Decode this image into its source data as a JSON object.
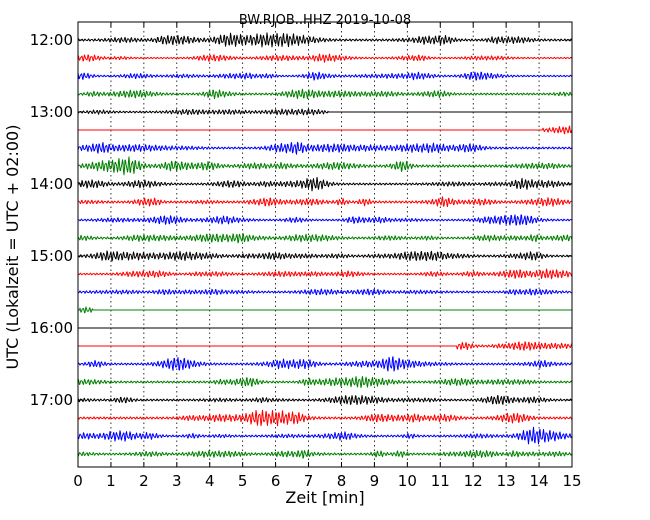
{
  "chart_data": {
    "type": "line",
    "title": "BW.RJOB..HHZ 2019-10-08",
    "xlabel": "Zeit  [min]",
    "ylabel": "UTC (Lokalzeit = UTC + 02:00)",
    "xlim": [
      0,
      15
    ],
    "x_ticks": [
      "0",
      "1",
      "2",
      "3",
      "4",
      "5",
      "6",
      "7",
      "8",
      "9",
      "10",
      "11",
      "12",
      "13",
      "14",
      "15"
    ],
    "y_ticks": [
      "12:00",
      "13:00",
      "14:00",
      "15:00",
      "16:00",
      "17:00"
    ],
    "grid": "vertical dotted",
    "color_cycle": [
      "#000000",
      "#ff0000",
      "#0000ff",
      "#008000"
    ],
    "traces": [
      {
        "start": "12:00",
        "amp": 0.5,
        "active_from": 0,
        "active_to": 15
      },
      {
        "start": "12:15",
        "amp": 0.3,
        "active_from": 0,
        "active_to": 15
      },
      {
        "start": "12:30",
        "amp": 0.35,
        "active_from": 0,
        "active_to": 15
      },
      {
        "start": "12:45",
        "amp": 0.45,
        "active_from": 0,
        "active_to": 15
      },
      {
        "start": "13:00",
        "amp": 0.4,
        "active_from": 0,
        "active_to": 7.6
      },
      {
        "start": "13:15",
        "amp": 0.55,
        "active_from": 14.1,
        "active_to": 15
      },
      {
        "start": "13:30",
        "amp": 0.45,
        "active_from": 0,
        "active_to": 15
      },
      {
        "start": "13:45",
        "amp": 0.55,
        "active_from": 0,
        "active_to": 15
      },
      {
        "start": "14:00",
        "amp": 0.45,
        "active_from": 0,
        "active_to": 15
      },
      {
        "start": "14:15",
        "amp": 0.5,
        "active_from": 0,
        "active_to": 15
      },
      {
        "start": "14:30",
        "amp": 0.4,
        "active_from": 0,
        "active_to": 15
      },
      {
        "start": "14:45",
        "amp": 0.45,
        "active_from": 0,
        "active_to": 15
      },
      {
        "start": "15:00",
        "amp": 0.45,
        "active_from": 0,
        "active_to": 15
      },
      {
        "start": "15:15",
        "amp": 0.4,
        "active_from": 0,
        "active_to": 15
      },
      {
        "start": "15:30",
        "amp": 0.45,
        "active_from": 0,
        "active_to": 15
      },
      {
        "start": "15:45",
        "amp": 0.35,
        "active_from": 0.05,
        "active_to": 0.45
      },
      {
        "start": "16:00",
        "amp": 0.0,
        "active_from": 0,
        "active_to": 0
      },
      {
        "start": "16:15",
        "amp": 0.45,
        "active_from": 11.5,
        "active_to": 15
      },
      {
        "start": "16:30",
        "amp": 0.45,
        "active_from": 0,
        "active_to": 15
      },
      {
        "start": "16:45",
        "amp": 0.45,
        "active_from": 0,
        "active_to": 15
      },
      {
        "start": "17:00",
        "amp": 0.45,
        "active_from": 0,
        "active_to": 15
      },
      {
        "start": "17:15",
        "amp": 0.5,
        "active_from": 0,
        "active_to": 15
      },
      {
        "start": "17:30",
        "amp": 0.45,
        "active_from": 0,
        "active_to": 15
      },
      {
        "start": "17:45",
        "amp": 0.45,
        "active_from": 0,
        "active_to": 15
      }
    ]
  }
}
